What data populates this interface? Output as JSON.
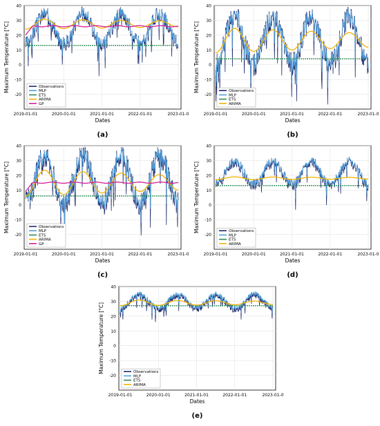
{
  "colors": {
    "observations": "#1f2a6b",
    "mlp": "#4c9fdc",
    "ets": "#2e8b57",
    "arima": "#f5b301",
    "gp": "#d6209a",
    "grid": "#e3e3e3"
  },
  "chart_data": [
    {
      "type": "line",
      "caption": "(a)",
      "xlabel": "Dates",
      "ylabel": "Maximum Temperature [°C]",
      "ylim": [
        -30,
        40
      ],
      "yticks": [
        -20,
        -10,
        0,
        10,
        20,
        30,
        40
      ],
      "xticks": [
        "2019-01-01",
        "2020-01-01",
        "2021-01-01",
        "2022-01-01",
        "2023-01-0"
      ],
      "legend": {
        "position": "bottom-left",
        "entries": [
          "Observations",
          "MLP",
          "ETS",
          "ARIMA",
          "GP"
        ]
      },
      "series_summary": {
        "observations_seasonal_range": [
          12,
          36
        ],
        "ets_level": 13,
        "arima_range": [
          24,
          31
        ],
        "gp_level": 26
      }
    },
    {
      "type": "line",
      "caption": "(b)",
      "xlabel": "Dates",
      "ylabel": "Maximum Temperature [°C]",
      "ylim": [
        -30,
        40
      ],
      "yticks": [
        -20,
        -10,
        0,
        10,
        20,
        30,
        40
      ],
      "xticks": [
        "2019-01-01",
        "2020-01-01",
        "2021-01-01",
        "2022-01-01",
        "2023-01-0"
      ],
      "legend": {
        "position": "bottom-left",
        "entries": [
          "Observations",
          "MLP",
          "ETS",
          "ARIMA"
        ]
      },
      "series_summary": {
        "observations_seasonal_range": [
          -2,
          35
        ],
        "ets_level": 4,
        "arima_range": [
          8,
          25
        ]
      }
    },
    {
      "type": "line",
      "caption": "(c)",
      "xlabel": "Dates",
      "ylabel": "Maximum Temperature [°C]",
      "ylim": [
        -30,
        40
      ],
      "yticks": [
        -20,
        -10,
        0,
        10,
        20,
        30,
        40
      ],
      "xticks": [
        "2019-01-01",
        "2020-01-01",
        "2021-01-01",
        "2022-01-01",
        "2023-01-0"
      ],
      "legend": {
        "position": "bottom-left",
        "entries": [
          "Observations",
          "MLP",
          "ETS",
          "ARIMA",
          "GP"
        ]
      },
      "series_summary": {
        "observations_seasonal_range": [
          -2,
          36
        ],
        "ets_level": 6,
        "arima_range": [
          6,
          24
        ],
        "gp_level": 15
      }
    },
    {
      "type": "line",
      "caption": "(d)",
      "xlabel": "Dates",
      "ylabel": "Maximum Temperature [°C]",
      "ylim": [
        -30,
        40
      ],
      "yticks": [
        -20,
        -10,
        0,
        10,
        20,
        30,
        40
      ],
      "xticks": [
        "2019-01-01",
        "2020-01-01",
        "2021-01-01",
        "2022-01-01",
        "2023-01-0"
      ],
      "legend": {
        "position": "bottom-left",
        "entries": [
          "Observations",
          "MLP",
          "ETS",
          "ARIMA"
        ]
      },
      "series_summary": {
        "observations_seasonal_range": [
          12,
          30
        ],
        "ets_level": 13,
        "arima_range": [
          17,
          19
        ]
      }
    },
    {
      "type": "line",
      "caption": "(e)",
      "xlabel": "Dates",
      "ylabel": "Maximum Temperature [°C]",
      "ylim": [
        -30,
        40
      ],
      "yticks": [
        -20,
        -10,
        0,
        10,
        20,
        30,
        40
      ],
      "xticks": [
        "2019-01-01",
        "2020-01-01",
        "2021-01-01",
        "2022-01-01",
        "2023-01-0"
      ],
      "legend": {
        "position": "bottom-left",
        "entries": [
          "Observations",
          "MLP",
          "ETS",
          "ARIMA"
        ]
      },
      "series_summary": {
        "observations_seasonal_range": [
          24,
          35
        ],
        "ets_level": 27,
        "arima_range": [
          27,
          31
        ]
      }
    }
  ]
}
